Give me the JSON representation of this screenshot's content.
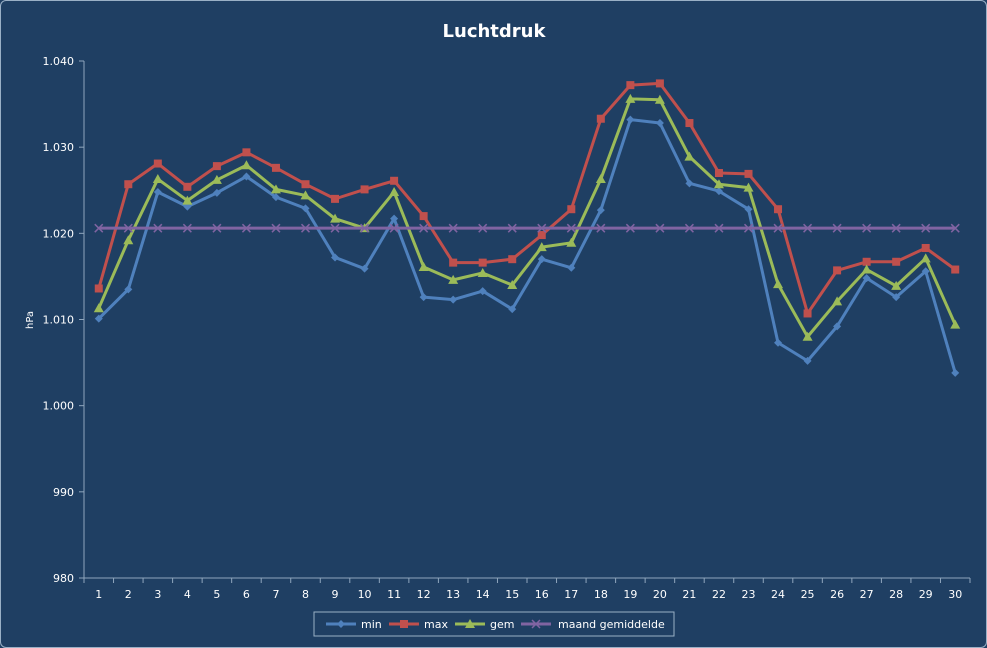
{
  "chart_data": {
    "type": "line",
    "title": "Luchtdruk",
    "ylabel": "hPa",
    "xlabel": "",
    "categories": [
      "1",
      "2",
      "3",
      "4",
      "5",
      "6",
      "7",
      "8",
      "9",
      "10",
      "11",
      "12",
      "13",
      "14",
      "15",
      "16",
      "17",
      "18",
      "19",
      "20",
      "21",
      "22",
      "23",
      "24",
      "25",
      "26",
      "27",
      "28",
      "29",
      "30"
    ],
    "ylim": [
      980,
      1040
    ],
    "yticks": [
      980,
      990,
      1000,
      1010,
      1020,
      1030,
      1040
    ],
    "ytick_labels": [
      "980",
      "990",
      "1.000",
      "1.010",
      "1.020",
      "1.030",
      "1.040"
    ],
    "grid": false,
    "legend_position": "bottom",
    "series": [
      {
        "name": "min",
        "color": "#4f81bd",
        "marker": "diamond",
        "values": [
          1010.1,
          1013.5,
          1024.8,
          1023.1,
          1024.7,
          1026.6,
          1024.2,
          1022.9,
          1017.2,
          1015.9,
          1021.7,
          1012.6,
          1012.3,
          1013.3,
          1011.2,
          1017.0,
          1016.0,
          1022.7,
          1033.2,
          1032.8,
          1025.8,
          1024.9,
          1022.8,
          1007.3,
          1005.2,
          1009.2,
          1014.8,
          1012.6,
          1015.6,
          1003.8
        ]
      },
      {
        "name": "max",
        "color": "#c0504d",
        "marker": "square",
        "values": [
          1013.6,
          1025.7,
          1028.1,
          1025.4,
          1027.8,
          1029.4,
          1027.6,
          1025.7,
          1024.0,
          1025.1,
          1026.1,
          1022.0,
          1016.6,
          1016.6,
          1017.0,
          1019.8,
          1022.8,
          1033.3,
          1037.2,
          1037.4,
          1032.8,
          1027.0,
          1026.9,
          1022.8,
          1010.7,
          1015.7,
          1016.7,
          1016.7,
          1018.3,
          1015.8
        ]
      },
      {
        "name": "gem",
        "color": "#9bbb59",
        "marker": "triangle",
        "values": [
          1011.3,
          1019.2,
          1026.3,
          1023.8,
          1026.2,
          1027.9,
          1025.1,
          1024.4,
          1021.7,
          1020.6,
          1024.8,
          1016.1,
          1014.6,
          1015.4,
          1014.0,
          1018.4,
          1018.9,
          1026.3,
          1035.6,
          1035.5,
          1028.9,
          1025.7,
          1025.3,
          1014.1,
          1008.0,
          1012.1,
          1015.8,
          1013.9,
          1017.1,
          1009.4
        ]
      },
      {
        "name": "maand gemiddelde",
        "color": "#8064a2",
        "marker": "x",
        "values": [
          1020.6,
          1020.6,
          1020.6,
          1020.6,
          1020.6,
          1020.6,
          1020.6,
          1020.6,
          1020.6,
          1020.6,
          1020.6,
          1020.6,
          1020.6,
          1020.6,
          1020.6,
          1020.6,
          1020.6,
          1020.6,
          1020.6,
          1020.6,
          1020.6,
          1020.6,
          1020.6,
          1020.6,
          1020.6,
          1020.6,
          1020.6,
          1020.6,
          1020.6,
          1020.6
        ]
      }
    ]
  }
}
